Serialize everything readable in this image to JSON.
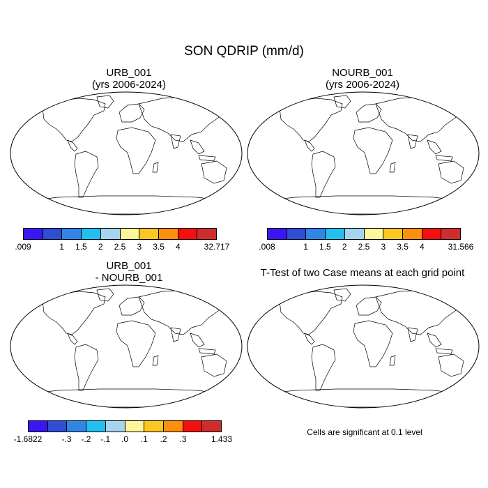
{
  "figure": {
    "title": "SON QDRIP (mm/d)"
  },
  "panels": [
    {
      "id": "urb",
      "title_line1": "URB_001",
      "title_line2": "(yrs 2006-2024)",
      "colorbar": {
        "colors": [
          "#3c16f2",
          "#2f4ed6",
          "#2f86e6",
          "#22c0f0",
          "#a6d4ee",
          "#fef69a",
          "#fdc723",
          "#fd8f0e",
          "#f50f0f",
          "#cf2d2d"
        ],
        "labels": [
          ".009",
          "1",
          "1.5",
          "2",
          "2.5",
          "3",
          "3.5",
          "4",
          "32.717"
        ]
      }
    },
    {
      "id": "nourb",
      "title_line1": "NOURB_001",
      "title_line2": "(yrs 2006-2024)",
      "colorbar": {
        "colors": [
          "#3c16f2",
          "#2f4ed6",
          "#2f86e6",
          "#22c0f0",
          "#a6d4ee",
          "#fef69a",
          "#fdc723",
          "#fd8f0e",
          "#f50f0f",
          "#cf2d2d"
        ],
        "labels": [
          ".008",
          "1",
          "1.5",
          "2",
          "2.5",
          "3",
          "3.5",
          "4",
          "31.566"
        ]
      }
    },
    {
      "id": "diff",
      "title_line1": "URB_001",
      "title_line2": "- NOURB_001",
      "colorbar": {
        "colors": [
          "#3c16f2",
          "#2f4ed6",
          "#2f86e6",
          "#22c0f0",
          "#a6d4ee",
          "#fef69a",
          "#fdc723",
          "#fd8f0e",
          "#f50f0f",
          "#cf2d2d"
        ],
        "labels": [
          "-1.6822",
          "-.3",
          "-.2",
          "-.1",
          ".0",
          ".1",
          ".2",
          ".3",
          "1.433"
        ]
      }
    },
    {
      "id": "ttest",
      "title_line1": "T-Test of two Case means at each grid point",
      "note": "Cells are significant at 0.1 level",
      "significant_color": "#ff0000"
    }
  ]
}
